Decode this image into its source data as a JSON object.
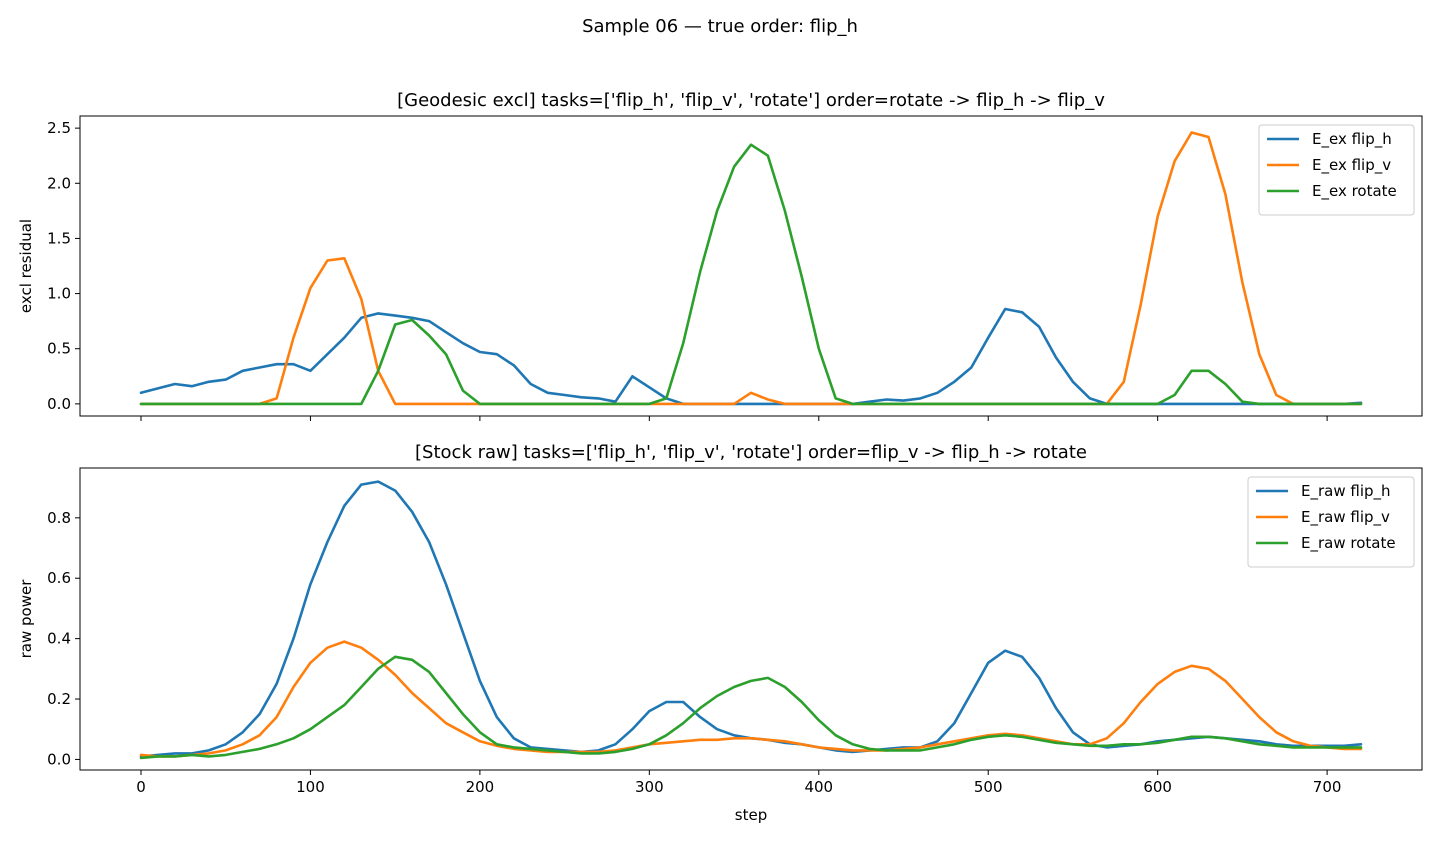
{
  "figure": {
    "suptitle": "Sample 06 — true order: flip_h"
  },
  "colors": {
    "flip_h": "#1f77b4",
    "flip_v": "#ff7f0e",
    "rotate": "#2ca02c"
  },
  "chart_data": [
    {
      "type": "line",
      "title": "[Geodesic excl] tasks=['flip_h', 'flip_v', 'rotate'] order=rotate -> flip_h -> flip_v",
      "xlabel": "",
      "ylabel": "excl residual",
      "xlim": [
        -36,
        756
      ],
      "ylim": [
        -0.11,
        2.61
      ],
      "xticks": [
        0,
        100,
        200,
        300,
        400,
        500,
        600,
        700
      ],
      "xtick_labels_shown": false,
      "yticks": [
        0.0,
        0.5,
        1.0,
        1.5,
        2.0,
        2.5
      ],
      "ytick_labels": [
        "0.0",
        "0.5",
        "1.0",
        "1.5",
        "2.0",
        "2.5"
      ],
      "legend_position": "top-right",
      "grid": false,
      "x": [
        0,
        10,
        20,
        30,
        40,
        50,
        60,
        70,
        80,
        90,
        100,
        110,
        120,
        130,
        140,
        150,
        160,
        170,
        180,
        190,
        200,
        210,
        220,
        230,
        240,
        250,
        260,
        270,
        280,
        290,
        300,
        310,
        320,
        330,
        340,
        350,
        360,
        370,
        380,
        390,
        400,
        410,
        420,
        430,
        440,
        450,
        460,
        470,
        480,
        490,
        500,
        510,
        520,
        530,
        540,
        550,
        560,
        570,
        580,
        590,
        600,
        610,
        620,
        630,
        640,
        650,
        660,
        670,
        680,
        690,
        700,
        710,
        720
      ],
      "series": [
        {
          "name": "E_ex flip_h",
          "color_key": "flip_h",
          "values": [
            0.1,
            0.14,
            0.18,
            0.16,
            0.2,
            0.22,
            0.3,
            0.33,
            0.36,
            0.36,
            0.3,
            0.45,
            0.6,
            0.78,
            0.82,
            0.8,
            0.78,
            0.75,
            0.65,
            0.55,
            0.47,
            0.45,
            0.35,
            0.18,
            0.1,
            0.08,
            0.06,
            0.05,
            0.02,
            0.25,
            0.15,
            0.05,
            0.0,
            0.0,
            0.0,
            0.0,
            0.0,
            0.0,
            0.0,
            0.0,
            0.0,
            0.0,
            0.0,
            0.02,
            0.04,
            0.03,
            0.05,
            0.1,
            0.2,
            0.33,
            0.6,
            0.86,
            0.83,
            0.7,
            0.42,
            0.2,
            0.05,
            0.0,
            0.0,
            0.0,
            0.0,
            0.0,
            0.0,
            0.0,
            0.0,
            0.0,
            0.0,
            0.0,
            0.0,
            0.0,
            0.0,
            0.0,
            0.01
          ]
        },
        {
          "name": "E_ex flip_v",
          "color_key": "flip_v",
          "values": [
            0,
            0,
            0,
            0,
            0,
            0,
            0,
            0,
            0.05,
            0.6,
            1.05,
            1.3,
            1.32,
            0.95,
            0.3,
            0,
            0,
            0,
            0,
            0,
            0,
            0,
            0,
            0,
            0,
            0,
            0,
            0,
            0,
            0,
            0,
            0,
            0,
            0,
            0,
            0,
            0.1,
            0.04,
            0,
            0,
            0,
            0,
            0,
            0,
            0,
            0,
            0,
            0,
            0,
            0,
            0,
            0,
            0,
            0,
            0,
            0,
            0,
            0,
            0.2,
            0.9,
            1.7,
            2.2,
            2.46,
            2.42,
            1.9,
            1.1,
            0.45,
            0.08,
            0,
            0,
            0,
            0,
            0
          ]
        },
        {
          "name": "E_ex rotate",
          "color_key": "rotate",
          "values": [
            0,
            0,
            0,
            0,
            0,
            0,
            0,
            0,
            0,
            0,
            0,
            0,
            0,
            0,
            0.3,
            0.72,
            0.76,
            0.62,
            0.45,
            0.12,
            0,
            0,
            0,
            0,
            0,
            0,
            0,
            0,
            0,
            0,
            0,
            0.05,
            0.55,
            1.2,
            1.75,
            2.15,
            2.35,
            2.25,
            1.75,
            1.15,
            0.5,
            0.05,
            0,
            0,
            0,
            0,
            0,
            0,
            0,
            0,
            0,
            0,
            0,
            0,
            0,
            0,
            0,
            0,
            0,
            0,
            0,
            0.08,
            0.3,
            0.3,
            0.18,
            0.02,
            0,
            0,
            0,
            0,
            0,
            0,
            0
          ]
        }
      ]
    },
    {
      "type": "line",
      "title": "[Stock raw] tasks=['flip_h', 'flip_v', 'rotate'] order=flip_v -> flip_h -> rotate",
      "xlabel": "step",
      "ylabel": "raw power",
      "xlim": [
        -36,
        756
      ],
      "ylim": [
        -0.035,
        0.965
      ],
      "xticks": [
        0,
        100,
        200,
        300,
        400,
        500,
        600,
        700
      ],
      "xtick_labels": [
        "0",
        "100",
        "200",
        "300",
        "400",
        "500",
        "600",
        "700"
      ],
      "yticks": [
        0.0,
        0.2,
        0.4,
        0.6,
        0.8
      ],
      "ytick_labels": [
        "0.0",
        "0.2",
        "0.4",
        "0.6",
        "0.8"
      ],
      "legend_position": "top-right",
      "grid": false,
      "x": [
        0,
        10,
        20,
        30,
        40,
        50,
        60,
        70,
        80,
        90,
        100,
        110,
        120,
        130,
        140,
        150,
        160,
        170,
        180,
        190,
        200,
        210,
        220,
        230,
        240,
        250,
        260,
        270,
        280,
        290,
        300,
        310,
        320,
        330,
        340,
        350,
        360,
        370,
        380,
        390,
        400,
        410,
        420,
        430,
        440,
        450,
        460,
        470,
        480,
        490,
        500,
        510,
        520,
        530,
        540,
        550,
        560,
        570,
        580,
        590,
        600,
        610,
        620,
        630,
        640,
        650,
        660,
        670,
        680,
        690,
        700,
        710,
        720
      ],
      "series": [
        {
          "name": "E_raw flip_h",
          "color_key": "flip_h",
          "values": [
            0.01,
            0.015,
            0.02,
            0.02,
            0.03,
            0.05,
            0.09,
            0.15,
            0.25,
            0.4,
            0.58,
            0.72,
            0.84,
            0.91,
            0.92,
            0.89,
            0.82,
            0.72,
            0.58,
            0.42,
            0.26,
            0.14,
            0.07,
            0.04,
            0.035,
            0.03,
            0.025,
            0.03,
            0.05,
            0.1,
            0.16,
            0.19,
            0.19,
            0.14,
            0.1,
            0.08,
            0.07,
            0.065,
            0.055,
            0.05,
            0.04,
            0.03,
            0.025,
            0.03,
            0.035,
            0.04,
            0.04,
            0.06,
            0.12,
            0.22,
            0.32,
            0.36,
            0.34,
            0.27,
            0.17,
            0.09,
            0.05,
            0.04,
            0.045,
            0.05,
            0.06,
            0.065,
            0.07,
            0.075,
            0.07,
            0.065,
            0.06,
            0.05,
            0.045,
            0.045,
            0.045,
            0.045,
            0.05
          ]
        },
        {
          "name": "E_raw flip_v",
          "color_key": "flip_v",
          "values": [
            0.015,
            0.01,
            0.01,
            0.015,
            0.02,
            0.03,
            0.05,
            0.08,
            0.14,
            0.24,
            0.32,
            0.37,
            0.39,
            0.37,
            0.33,
            0.28,
            0.22,
            0.17,
            0.12,
            0.09,
            0.06,
            0.045,
            0.035,
            0.03,
            0.025,
            0.025,
            0.025,
            0.025,
            0.03,
            0.04,
            0.05,
            0.055,
            0.06,
            0.065,
            0.065,
            0.07,
            0.07,
            0.065,
            0.06,
            0.05,
            0.04,
            0.035,
            0.03,
            0.03,
            0.03,
            0.035,
            0.04,
            0.05,
            0.06,
            0.07,
            0.08,
            0.085,
            0.08,
            0.07,
            0.06,
            0.05,
            0.05,
            0.07,
            0.12,
            0.19,
            0.25,
            0.29,
            0.31,
            0.3,
            0.26,
            0.2,
            0.14,
            0.09,
            0.06,
            0.045,
            0.04,
            0.035,
            0.035
          ]
        },
        {
          "name": "E_raw rotate",
          "color_key": "rotate",
          "values": [
            0.005,
            0.01,
            0.01,
            0.015,
            0.01,
            0.015,
            0.025,
            0.035,
            0.05,
            0.07,
            0.1,
            0.14,
            0.18,
            0.24,
            0.3,
            0.34,
            0.33,
            0.29,
            0.22,
            0.15,
            0.09,
            0.05,
            0.04,
            0.035,
            0.03,
            0.025,
            0.02,
            0.02,
            0.025,
            0.035,
            0.05,
            0.08,
            0.12,
            0.17,
            0.21,
            0.24,
            0.26,
            0.27,
            0.24,
            0.19,
            0.13,
            0.08,
            0.05,
            0.035,
            0.03,
            0.03,
            0.03,
            0.04,
            0.05,
            0.065,
            0.075,
            0.08,
            0.075,
            0.065,
            0.055,
            0.05,
            0.045,
            0.045,
            0.05,
            0.05,
            0.055,
            0.065,
            0.075,
            0.075,
            0.07,
            0.06,
            0.05,
            0.045,
            0.04,
            0.04,
            0.04,
            0.04,
            0.04
          ]
        }
      ]
    }
  ]
}
